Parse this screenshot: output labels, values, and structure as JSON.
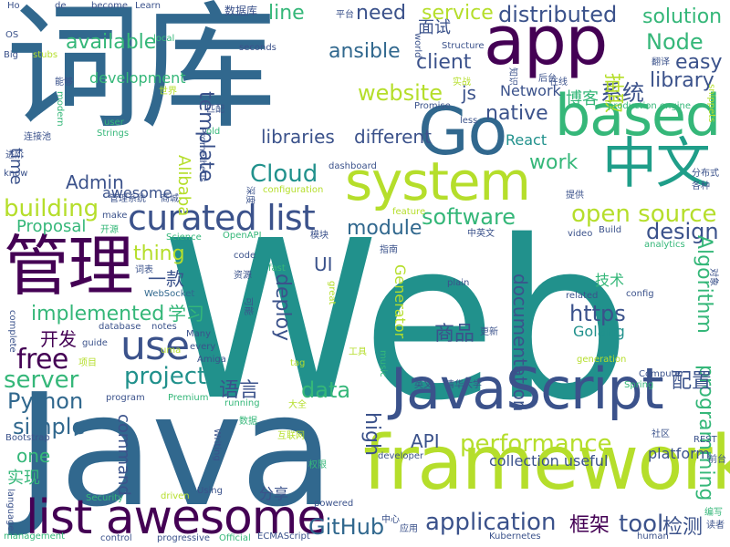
{
  "palette": {
    "dark_purple": "#440154",
    "indigo": "#3b528b",
    "blue": "#31688e",
    "teal": "#21918c",
    "teal_light": "#1f9e89",
    "green": "#35b779",
    "green_light": "#6ece58",
    "yellow_green": "#b5de2b",
    "yellow": "#fde725"
  },
  "words": [
    {
      "text": "Web",
      "color": "#21918c"
    },
    {
      "text": "Java",
      "color": "#31688e"
    },
    {
      "text": "词库",
      "color": "#31688e"
    },
    {
      "text": "framework",
      "color": "#b5de2b"
    },
    {
      "text": "JavaScript",
      "color": "#3b528b"
    },
    {
      "text": "app",
      "color": "#440154"
    },
    {
      "text": "Go",
      "color": "#31688e"
    },
    {
      "text": "based",
      "color": "#35b779"
    },
    {
      "text": "system",
      "color": "#b5de2b"
    },
    {
      "text": "中文",
      "color": "#1f9e89"
    },
    {
      "text": "管理",
      "color": "#440154"
    },
    {
      "text": "list awesome",
      "color": "#440154"
    },
    {
      "text": "curated list",
      "color": "#3b528b"
    },
    {
      "text": "use",
      "color": "#3b528b"
    },
    {
      "text": "distributed",
      "color": "#3b528b"
    },
    {
      "text": "open source",
      "color": "#b5de2b"
    },
    {
      "text": "service",
      "color": "#b5de2b"
    },
    {
      "text": "Node",
      "color": "#35b779"
    },
    {
      "text": "easy",
      "color": "#3b528b"
    },
    {
      "text": "application",
      "color": "#3b528b"
    },
    {
      "text": "performance",
      "color": "#b5de2b"
    },
    {
      "text": "GitHub",
      "color": "#31688e"
    },
    {
      "text": "tool",
      "color": "#3b528b"
    },
    {
      "text": "检测",
      "color": "#3b528b"
    },
    {
      "text": "框架",
      "color": "#440154"
    },
    {
      "text": "software",
      "color": "#35b779"
    },
    {
      "text": "design",
      "color": "#3b528b"
    },
    {
      "text": "free",
      "color": "#440154"
    },
    {
      "text": "project",
      "color": "#21918c"
    },
    {
      "text": "server",
      "color": "#35b779"
    },
    {
      "text": "Python",
      "color": "#31688e"
    },
    {
      "text": "simple",
      "color": "#31688e"
    },
    {
      "text": "data",
      "color": "#35b779"
    },
    {
      "text": "building",
      "color": "#b5de2b"
    },
    {
      "text": "Cloud",
      "color": "#21918c"
    },
    {
      "text": "website",
      "color": "#b5de2b"
    },
    {
      "text": "solution",
      "color": "#35b779"
    },
    {
      "text": "need",
      "color": "#3b528b"
    },
    {
      "text": "line",
      "color": "#35b779"
    },
    {
      "text": "available",
      "color": "#35b779"
    },
    {
      "text": "ansible",
      "color": "#31688e"
    },
    {
      "text": "client",
      "color": "#3b528b"
    },
    {
      "text": "native",
      "color": "#3b528b"
    },
    {
      "text": "library",
      "color": "#3b528b"
    },
    {
      "text": "系统",
      "color": "#3b528b"
    },
    {
      "text": "博客",
      "color": "#35b779"
    },
    {
      "text": "https",
      "color": "#3b528b"
    },
    {
      "text": "商品",
      "color": "#3b528b"
    },
    {
      "text": "实现",
      "color": "#35b779"
    },
    {
      "text": "开发",
      "color": "#440154"
    },
    {
      "text": "学习",
      "color": "#35b779"
    },
    {
      "text": "implemented",
      "color": "#35b779"
    },
    {
      "text": "thing",
      "color": "#b5de2b"
    },
    {
      "text": "module",
      "color": "#31688e"
    },
    {
      "text": "high",
      "color": "#3b528b"
    },
    {
      "text": "deploy",
      "color": "#3b528b"
    },
    {
      "text": "语言",
      "color": "#3b528b"
    },
    {
      "text": "one",
      "color": "#35b779"
    },
    {
      "text": "work",
      "color": "#35b779"
    },
    {
      "text": "different",
      "color": "#3b528b"
    },
    {
      "text": "libraries",
      "color": "#3b528b"
    },
    {
      "text": "Admin",
      "color": "#3b528b"
    },
    {
      "text": "development",
      "color": "#35b779"
    },
    {
      "text": "Proposal",
      "color": "#35b779"
    },
    {
      "text": "面试",
      "color": "#3b528b"
    },
    {
      "text": "抽取",
      "color": "#b5de2b"
    },
    {
      "text": "template",
      "color": "#3b528b"
    },
    {
      "text": "time",
      "color": "#3b528b"
    },
    {
      "text": "documentation",
      "color": "#3b528b"
    },
    {
      "text": "Algorithm",
      "color": "#35b779"
    },
    {
      "text": "programming",
      "color": "#35b779"
    },
    {
      "text": "配置",
      "color": "#3b528b"
    },
    {
      "text": "platform",
      "color": "#3b528b"
    },
    {
      "text": "API",
      "color": "#3b528b"
    },
    {
      "text": "collection useful",
      "color": "#3b528b"
    },
    {
      "text": "command",
      "color": "#3b528b"
    },
    {
      "text": "Generator",
      "color": "#b5de2b"
    },
    {
      "text": "UI",
      "color": "#3b528b"
    },
    {
      "text": "技术",
      "color": "#35b779"
    },
    {
      "text": "React",
      "color": "#21918c"
    },
    {
      "text": "Network",
      "color": "#3b528b"
    },
    {
      "text": "Golang",
      "color": "#21918c"
    },
    {
      "text": "Alibaba",
      "color": "#b5de2b"
    },
    {
      "text": "一款",
      "color": "#3b528b"
    },
    {
      "text": "分享",
      "color": "#3b528b"
    },
    {
      "text": "js",
      "color": "#3b528b"
    },
    {
      "text": "awesome",
      "color": "#3b528b"
    },
    {
      "text": "数据库",
      "color": "#3b528b"
    },
    {
      "text": "平台",
      "color": "#3b528b"
    },
    {
      "text": "become",
      "color": "#3b528b"
    },
    {
      "text": "Learn",
      "color": "#3b528b"
    },
    {
      "text": "de",
      "color": "#3b528b"
    },
    {
      "text": "Ho",
      "color": "#3b528b"
    },
    {
      "text": "OS",
      "color": "#3b528b"
    },
    {
      "text": "Big",
      "color": "#3b528b"
    },
    {
      "text": "stubs",
      "color": "#b5de2b"
    },
    {
      "text": "local",
      "color": "#35b779"
    },
    {
      "text": "管理系统",
      "color": "#3b528b"
    },
    {
      "text": "seconds",
      "color": "#3b528b"
    },
    {
      "text": "world",
      "color": "#3b528b"
    },
    {
      "text": "Structure",
      "color": "#3b528b"
    },
    {
      "text": "知识",
      "color": "#3b528b"
    },
    {
      "text": "翻译",
      "color": "#3b528b"
    },
    {
      "text": "snippets",
      "color": "#b5de2b"
    },
    {
      "text": "后台",
      "color": "#3b528b"
    },
    {
      "text": "在线",
      "color": "#3b528b"
    },
    {
      "text": "实战",
      "color": "#b5de2b"
    },
    {
      "text": "能够",
      "color": "#3b528b"
    },
    {
      "text": "世界",
      "color": "#b5de2b"
    },
    {
      "text": "modern",
      "color": "#35b779"
    },
    {
      "text": "匹配",
      "color": "#3b528b"
    },
    {
      "text": "Promise",
      "color": "#3b528b"
    },
    {
      "text": "production engine",
      "color": "#35b779"
    },
    {
      "text": "less",
      "color": "#3b528b"
    },
    {
      "text": "user",
      "color": "#35b779"
    },
    {
      "text": "Strings",
      "color": "#35b779"
    },
    {
      "text": "old",
      "color": "#35b779"
    },
    {
      "text": "进阶",
      "color": "#3b528b"
    },
    {
      "text": "连接池",
      "color": "#3b528b"
    },
    {
      "text": "know",
      "color": "#3b528b"
    },
    {
      "text": "dashboard",
      "color": "#3b528b"
    },
    {
      "text": "Prometheus",
      "color": "#3b528b"
    },
    {
      "text": "configuration",
      "color": "#b5de2b"
    },
    {
      "text": "分布式",
      "color": "#3b528b"
    },
    {
      "text": "各种",
      "color": "#3b528b"
    },
    {
      "text": "提供",
      "color": "#3b528b"
    },
    {
      "text": "商城",
      "color": "#3b528b"
    },
    {
      "text": "深度",
      "color": "#3b528b"
    },
    {
      "text": "feature",
      "color": "#b5de2b"
    },
    {
      "text": "make",
      "color": "#3b528b"
    },
    {
      "text": "开源",
      "color": "#35b779"
    },
    {
      "text": "Science",
      "color": "#35b779"
    },
    {
      "text": "OpenAPI",
      "color": "#35b779"
    },
    {
      "text": "模块",
      "color": "#3b528b"
    },
    {
      "text": "中英文",
      "color": "#3b528b"
    },
    {
      "text": "video",
      "color": "#3b528b"
    },
    {
      "text": "Build",
      "color": "#3b528b"
    },
    {
      "text": "analytics",
      "color": "#35b779"
    },
    {
      "text": "词表",
      "color": "#3b528b"
    },
    {
      "text": "fast",
      "color": "#35b779"
    },
    {
      "text": "code",
      "color": "#3b528b"
    },
    {
      "text": "资源",
      "color": "#3b528b"
    },
    {
      "text": "指南",
      "color": "#3b528b"
    },
    {
      "text": "WebSocket",
      "color": "#31688e"
    },
    {
      "text": "可能",
      "color": "#3b528b"
    },
    {
      "text": "great",
      "color": "#b5de2b"
    },
    {
      "text": "plain",
      "color": "#3b528b"
    },
    {
      "text": "related",
      "color": "#3b528b"
    },
    {
      "text": "config",
      "color": "#3b528b"
    },
    {
      "text": "对象",
      "color": "#3b528b"
    },
    {
      "text": "complete",
      "color": "#3b528b"
    },
    {
      "text": "guide",
      "color": "#3b528b"
    },
    {
      "text": "database",
      "color": "#3b528b"
    },
    {
      "text": "notes",
      "color": "#3b528b"
    },
    {
      "text": "Many",
      "color": "#3b528b"
    },
    {
      "text": "uma",
      "color": "#b5de2b"
    },
    {
      "text": "every",
      "color": "#3b528b"
    },
    {
      "text": "Amiga",
      "color": "#3b528b"
    },
    {
      "text": "更新",
      "color": "#3b528b"
    },
    {
      "text": "项目",
      "color": "#b5de2b"
    },
    {
      "text": "tag",
      "color": "#b5de2b"
    },
    {
      "text": "工具",
      "color": "#b5de2b"
    },
    {
      "text": "music",
      "color": "#35b779"
    },
    {
      "text": "英文",
      "color": "#3b528b"
    },
    {
      "text": "清华大学",
      "color": "#3b528b"
    },
    {
      "text": "generation",
      "color": "#b5de2b"
    },
    {
      "text": "Computer",
      "color": "#3b528b"
    },
    {
      "text": "Spring",
      "color": "#35b779"
    },
    {
      "text": "program",
      "color": "#3b528b"
    },
    {
      "text": "Premium",
      "color": "#35b779"
    },
    {
      "text": "running",
      "color": "#35b779"
    },
    {
      "text": "大全",
      "color": "#b5de2b"
    },
    {
      "text": "数据",
      "color": "#35b779"
    },
    {
      "text": "社区",
      "color": "#3b528b"
    },
    {
      "text": "REST",
      "color": "#3b528b"
    },
    {
      "text": "Bootstrap",
      "color": "#3b528b"
    },
    {
      "text": "互联网",
      "color": "#b5de2b"
    },
    {
      "text": "language",
      "color": "#3b528b"
    },
    {
      "text": "Writing",
      "color": "#3b528b"
    },
    {
      "text": "权限",
      "color": "#35b779"
    },
    {
      "text": "developer",
      "color": "#3b528b"
    },
    {
      "text": "前台",
      "color": "#3b528b"
    },
    {
      "text": "Security",
      "color": "#35b779"
    },
    {
      "text": "driven",
      "color": "#b5de2b"
    },
    {
      "text": "Using",
      "color": "#3b528b"
    },
    {
      "text": "powered",
      "color": "#3b528b"
    },
    {
      "text": "编写",
      "color": "#35b779"
    },
    {
      "text": "读者",
      "color": "#3b528b"
    },
    {
      "text": "management",
      "color": "#35b779"
    },
    {
      "text": "control",
      "color": "#3b528b"
    },
    {
      "text": "progressive",
      "color": "#3b528b"
    },
    {
      "text": "Official",
      "color": "#35b779"
    },
    {
      "text": "ECMAScript",
      "color": "#3b528b"
    },
    {
      "text": "中心",
      "color": "#3b528b"
    },
    {
      "text": "应用",
      "color": "#3b528b"
    },
    {
      "text": "Kubernetes",
      "color": "#3b528b"
    },
    {
      "text": "human",
      "color": "#3b528b"
    }
  ]
}
